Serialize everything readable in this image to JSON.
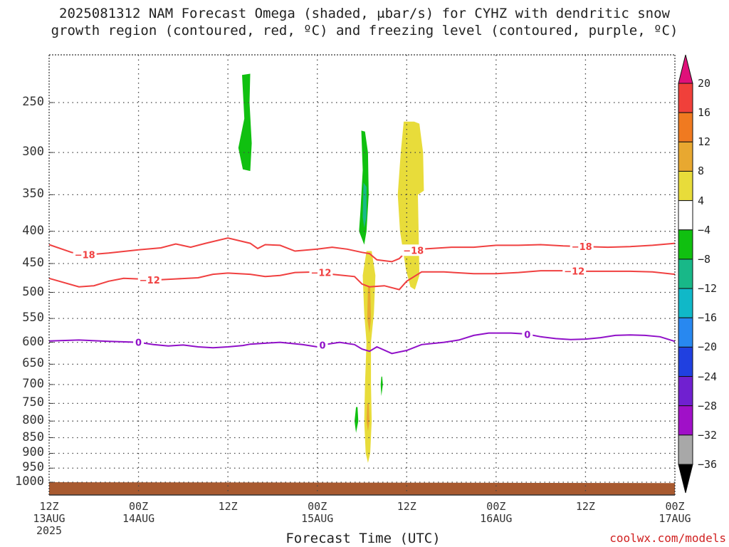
{
  "title_line1": "2025081312 NAM Forecast Omega (shaded, μbar/s) for CYHZ with dendritic snow",
  "title_line2": "growth region (contoured, red, ºC) and freezing level (contoured, purple, ºC)",
  "xlabel": "Forecast Time (UTC)",
  "credit": "coolwx.com/models",
  "y_ticks": [
    {
      "p": 250,
      "label": "250"
    },
    {
      "p": 300,
      "label": "300"
    },
    {
      "p": 350,
      "label": "350"
    },
    {
      "p": 400,
      "label": "400"
    },
    {
      "p": 450,
      "label": "450"
    },
    {
      "p": 500,
      "label": "500"
    },
    {
      "p": 550,
      "label": "550"
    },
    {
      "p": 600,
      "label": "600"
    },
    {
      "p": 650,
      "label": "650"
    },
    {
      "p": 700,
      "label": "700"
    },
    {
      "p": 750,
      "label": "750"
    },
    {
      "p": 800,
      "label": "800"
    },
    {
      "p": 850,
      "label": "850"
    },
    {
      "p": 900,
      "label": "900"
    },
    {
      "p": 950,
      "label": "950"
    },
    {
      "p": 1000,
      "label": "1000"
    }
  ],
  "x_ticks": [
    {
      "t": 0,
      "lines": [
        "12Z",
        "13AUG",
        "2025"
      ]
    },
    {
      "t": 12,
      "lines": [
        "00Z",
        "14AUG"
      ]
    },
    {
      "t": 24,
      "lines": [
        "12Z"
      ]
    },
    {
      "t": 36,
      "lines": [
        "00Z",
        "15AUG"
      ]
    },
    {
      "t": 48,
      "lines": [
        "12Z"
      ]
    },
    {
      "t": 60,
      "lines": [
        "00Z",
        "16AUG"
      ]
    },
    {
      "t": 72,
      "lines": [
        "12Z"
      ]
    },
    {
      "t": 84,
      "lines": [
        "00Z",
        "17AUG"
      ]
    }
  ],
  "colorbar": [
    {
      "label": "20",
      "color": "#e0107a"
    },
    {
      "label": "16",
      "color": "#f0403a"
    },
    {
      "label": "12",
      "color": "#f07a20"
    },
    {
      "label": "8",
      "color": "#e8a830"
    },
    {
      "label": "4",
      "color": "#e8dc3a"
    },
    {
      "label": "−4",
      "color": "#ffffff"
    },
    {
      "label": "−8",
      "color": "#10c010"
    },
    {
      "label": "−12",
      "color": "#18b888"
    },
    {
      "label": "−16",
      "color": "#10b8c8"
    },
    {
      "label": "−20",
      "color": "#2888f0"
    },
    {
      "label": "−24",
      "color": "#2040e0"
    },
    {
      "label": "−28",
      "color": "#7020d0"
    },
    {
      "label": "−32",
      "color": "#a010c8"
    },
    {
      "label": "−36",
      "color": "#a8a8a8"
    }
  ],
  "chart_data": {
    "type": "time-height cross-section",
    "title": "2025081312 NAM Forecast Omega (shaded, μbar/s) for CYHZ with dendritic snow growth region (contoured, red, ºC) and freezing level (contoured, purple, ºC)",
    "xlabel": "Forecast Time (UTC)",
    "x_units": "forecast hours from 2025-08-13 12Z",
    "xlim": [
      0,
      84
    ],
    "ylabel": "",
    "y_units": "hPa",
    "ylim": [
      1000,
      200
    ],
    "grid": true,
    "series": [
      {
        "name": "-18",
        "kind": "contour",
        "color": "#f04040",
        "label_at": [
          4.8,
          48.9,
          71.5
        ],
        "points": [
          [
            0,
            420
          ],
          [
            3,
            432
          ],
          [
            5,
            436
          ],
          [
            8,
            433
          ],
          [
            12,
            428
          ],
          [
            15,
            425
          ],
          [
            17,
            419
          ],
          [
            19,
            424
          ],
          [
            21,
            418
          ],
          [
            24,
            410
          ],
          [
            27,
            418
          ],
          [
            28,
            426
          ],
          [
            29,
            420
          ],
          [
            31,
            421
          ],
          [
            33,
            430
          ],
          [
            36,
            427
          ],
          [
            38,
            424
          ],
          [
            40,
            427
          ],
          [
            42,
            432
          ],
          [
            43,
            434
          ],
          [
            44,
            444
          ],
          [
            46,
            447
          ],
          [
            47,
            442
          ],
          [
            48,
            430
          ],
          [
            50,
            427
          ],
          [
            54,
            424
          ],
          [
            57,
            424
          ],
          [
            60,
            421
          ],
          [
            63,
            421
          ],
          [
            66,
            420
          ],
          [
            69,
            422
          ],
          [
            72,
            423
          ],
          [
            75,
            424
          ],
          [
            78,
            423
          ],
          [
            81,
            421
          ],
          [
            84,
            418
          ]
        ]
      },
      {
        "name": "-12",
        "kind": "contour",
        "color": "#f04040",
        "label_at": [
          13.5,
          36.5,
          70.5
        ],
        "points": [
          [
            0,
            475
          ],
          [
            4,
            490
          ],
          [
            6,
            488
          ],
          [
            8,
            480
          ],
          [
            10,
            475
          ],
          [
            12,
            476
          ],
          [
            14,
            478
          ],
          [
            17,
            476
          ],
          [
            20,
            474
          ],
          [
            22,
            468
          ],
          [
            24,
            466
          ],
          [
            27,
            468
          ],
          [
            29,
            472
          ],
          [
            31,
            470
          ],
          [
            33,
            465
          ],
          [
            36,
            464
          ],
          [
            38,
            468
          ],
          [
            41,
            472
          ],
          [
            42,
            485
          ],
          [
            43,
            490
          ],
          [
            45,
            488
          ],
          [
            47,
            495
          ],
          [
            48,
            480
          ],
          [
            50,
            464
          ],
          [
            53,
            464
          ],
          [
            57,
            467
          ],
          [
            60,
            467
          ],
          [
            63,
            465
          ],
          [
            66,
            462
          ],
          [
            69,
            462
          ],
          [
            72,
            463
          ],
          [
            75,
            463
          ],
          [
            78,
            463
          ],
          [
            81,
            464
          ],
          [
            84,
            468
          ]
        ]
      },
      {
        "name": "0",
        "kind": "contour",
        "color": "#9010c8",
        "label_at": [
          12,
          36.7,
          64.2
        ],
        "points": [
          [
            0,
            597
          ],
          [
            4,
            595
          ],
          [
            8,
            598
          ],
          [
            12,
            600
          ],
          [
            14,
            605
          ],
          [
            16,
            608
          ],
          [
            18,
            606
          ],
          [
            20,
            610
          ],
          [
            22,
            612
          ],
          [
            24,
            610
          ],
          [
            26,
            607
          ],
          [
            27,
            604
          ],
          [
            29,
            602
          ],
          [
            31,
            600
          ],
          [
            34,
            605
          ],
          [
            36,
            610
          ],
          [
            37,
            605
          ],
          [
            39,
            600
          ],
          [
            41,
            605
          ],
          [
            42,
            615
          ],
          [
            43,
            620
          ],
          [
            44,
            610
          ],
          [
            46,
            625
          ],
          [
            48,
            618
          ],
          [
            50,
            605
          ],
          [
            53,
            600
          ],
          [
            55,
            595
          ],
          [
            57,
            585
          ],
          [
            59,
            580
          ],
          [
            62,
            580
          ],
          [
            64,
            582
          ],
          [
            66,
            588
          ],
          [
            68,
            592
          ],
          [
            70,
            594
          ],
          [
            72,
            593
          ],
          [
            74,
            590
          ],
          [
            76,
            585
          ],
          [
            78,
            584
          ],
          [
            80,
            585
          ],
          [
            82,
            588
          ],
          [
            84,
            598
          ]
        ]
      }
    ],
    "omega_regions": [
      {
        "color": "#10c010",
        "value": "-4 to -8",
        "outline": [
          [
            25.9,
            226
          ],
          [
            26.2,
            265
          ],
          [
            25.4,
            295
          ],
          [
            26.0,
            319
          ],
          [
            27.0,
            321
          ],
          [
            27.2,
            290
          ],
          [
            26.9,
            250
          ],
          [
            27.0,
            225
          ]
        ]
      },
      {
        "color": "#10c010",
        "value": "-4 to -8",
        "outline": [
          [
            41.9,
            277
          ],
          [
            42.1,
            320
          ],
          [
            41.8,
            370
          ],
          [
            41.6,
            400
          ],
          [
            42.3,
            420
          ],
          [
            42.6,
            400
          ],
          [
            42.9,
            350
          ],
          [
            42.8,
            300
          ],
          [
            42.4,
            278
          ]
        ]
      },
      {
        "color": "#18b888",
        "value": "-8 to -12",
        "outline": [
          [
            42.2,
            335
          ],
          [
            42.1,
            380
          ],
          [
            42.3,
            395
          ],
          [
            42.6,
            380
          ],
          [
            42.6,
            340
          ]
        ]
      },
      {
        "color": "#e8dc3a",
        "value": "4 to 8",
        "outline": [
          [
            47.6,
            268
          ],
          [
            47.2,
            300
          ],
          [
            46.8,
            350
          ],
          [
            47.1,
            400
          ],
          [
            47.9,
            460
          ],
          [
            48.5,
            490
          ],
          [
            49.1,
            495
          ],
          [
            49.7,
            470
          ],
          [
            49.6,
            400
          ],
          [
            49.5,
            350
          ],
          [
            50.3,
            345
          ],
          [
            50.2,
            300
          ],
          [
            49.7,
            270
          ],
          [
            49.0,
            268
          ]
        ]
      },
      {
        "color": "#e8dc3a",
        "value": "4 to 8",
        "outline": [
          [
            42.6,
            430
          ],
          [
            42.1,
            470
          ],
          [
            42.3,
            540
          ],
          [
            42.6,
            600
          ],
          [
            42.4,
            700
          ],
          [
            42.3,
            800
          ],
          [
            42.5,
            900
          ],
          [
            42.8,
            932
          ],
          [
            43.1,
            900
          ],
          [
            43.3,
            800
          ],
          [
            43.2,
            700
          ],
          [
            43.2,
            600
          ],
          [
            43.6,
            540
          ],
          [
            43.8,
            470
          ],
          [
            43.3,
            430
          ]
        ]
      },
      {
        "color": "#e8a830",
        "value": "8 to 12",
        "outline": [
          [
            42.8,
            490
          ],
          [
            42.7,
            550
          ],
          [
            43.0,
            580
          ],
          [
            43.2,
            550
          ],
          [
            43.1,
            490
          ]
        ]
      },
      {
        "color": "#e8a830",
        "value": "8 to 12",
        "outline": [
          [
            42.7,
            750
          ],
          [
            42.6,
            800
          ],
          [
            42.8,
            830
          ],
          [
            43.0,
            800
          ],
          [
            42.9,
            750
          ]
        ]
      },
      {
        "color": "#10c010",
        "value": "-4 to -8",
        "outline": [
          [
            41.2,
            760
          ],
          [
            41.0,
            800
          ],
          [
            41.2,
            835
          ],
          [
            41.5,
            800
          ],
          [
            41.4,
            760
          ]
        ]
      },
      {
        "color": "#10c010",
        "value": "-4 to -8",
        "outline": [
          [
            44.6,
            680
          ],
          [
            44.5,
            700
          ],
          [
            44.6,
            730
          ],
          [
            44.8,
            700
          ],
          [
            44.7,
            680
          ]
        ]
      }
    ],
    "terrain": {
      "color": "#a85a30",
      "pressure_hPa": [
        [
          0,
          1000
        ],
        [
          84,
          1003
        ]
      ]
    }
  }
}
